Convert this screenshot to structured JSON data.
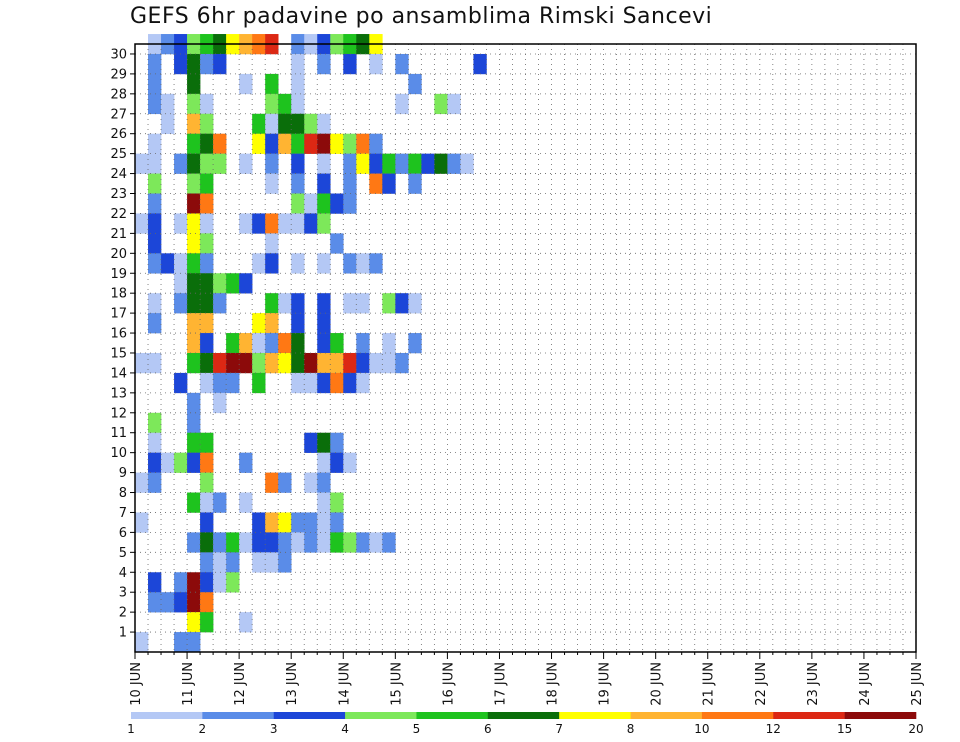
{
  "chart_data": {
    "type": "heatmap",
    "title": "GEFS 6hr padavine po ansamblima Rimski Sancevi",
    "x_tick_labels": [
      "10 JUN",
      "11 JUN",
      "12 JUN",
      "13 JUN",
      "14 JUN",
      "15 JUN",
      "16 JUN",
      "17 JUN",
      "18 JUN",
      "19 JUN",
      "20 JUN",
      "21 JUN",
      "22 JUN",
      "23 JUN",
      "24 JUN",
      "25 JUN"
    ],
    "y_tick_labels": [
      "1",
      "2",
      "3",
      "4",
      "5",
      "6",
      "7",
      "8",
      "9",
      "10",
      "11",
      "12",
      "13",
      "14",
      "15",
      "16",
      "17",
      "18",
      "19",
      "20",
      "21",
      "22",
      "23",
      "24",
      "25",
      "26",
      "27",
      "28",
      "29",
      "30"
    ],
    "x_steps_per_day": 4,
    "n_steps": 60,
    "grid": true,
    "colorbar": {
      "thresholds": [
        1,
        2,
        3,
        4,
        5,
        6,
        7,
        8,
        10,
        12,
        15,
        20
      ],
      "labels": [
        "1",
        "2",
        "3",
        "4",
        "5",
        "6",
        "7",
        "8",
        "10",
        "12",
        "15",
        "20"
      ],
      "colors": [
        "#b4c8f5",
        "#5a8ce8",
        "#1c46d8",
        "#7de85a",
        "#1ec31e",
        "#0a6e0a",
        "#ffff00",
        "#ffb432",
        "#ff7814",
        "#dc2814",
        "#8c0a0a"
      ]
    },
    "cells": [
      [
        1,
        30,
        1
      ],
      [
        2,
        30,
        2
      ],
      [
        3,
        30,
        3
      ],
      [
        4,
        30,
        4
      ],
      [
        5,
        30,
        5
      ],
      [
        6,
        30,
        6
      ],
      [
        7,
        30,
        7
      ],
      [
        8,
        30,
        8
      ],
      [
        9,
        30,
        9
      ],
      [
        10,
        30,
        10
      ],
      [
        12,
        30,
        2
      ],
      [
        13,
        30,
        1
      ],
      [
        14,
        30,
        3
      ],
      [
        15,
        30,
        4
      ],
      [
        16,
        30,
        5
      ],
      [
        17,
        30,
        6
      ],
      [
        18,
        30,
        7
      ],
      [
        1,
        29,
        2
      ],
      [
        3,
        29,
        3
      ],
      [
        4,
        29,
        6
      ],
      [
        5,
        29,
        2
      ],
      [
        6,
        29,
        3
      ],
      [
        12,
        29,
        1
      ],
      [
        14,
        29,
        2
      ],
      [
        16,
        29,
        3
      ],
      [
        18,
        29,
        1
      ],
      [
        20,
        29,
        2
      ],
      [
        26,
        29,
        3
      ],
      [
        1,
        28,
        2
      ],
      [
        4,
        28,
        6
      ],
      [
        8,
        28,
        1
      ],
      [
        10,
        28,
        5
      ],
      [
        12,
        28,
        1
      ],
      [
        21,
        28,
        2
      ],
      [
        1,
        27,
        2
      ],
      [
        2,
        27,
        1
      ],
      [
        4,
        27,
        4
      ],
      [
        5,
        27,
        1
      ],
      [
        10,
        27,
        4
      ],
      [
        11,
        27,
        5
      ],
      [
        12,
        27,
        1
      ],
      [
        20,
        27,
        1
      ],
      [
        23,
        27,
        4
      ],
      [
        24,
        27,
        1
      ],
      [
        2,
        26,
        1
      ],
      [
        4,
        26,
        8
      ],
      [
        5,
        26,
        4
      ],
      [
        9,
        26,
        5
      ],
      [
        10,
        26,
        1
      ],
      [
        11,
        26,
        6
      ],
      [
        12,
        26,
        6
      ],
      [
        13,
        26,
        4
      ],
      [
        14,
        26,
        1
      ],
      [
        1,
        25,
        1
      ],
      [
        4,
        25,
        5
      ],
      [
        5,
        25,
        6
      ],
      [
        6,
        25,
        9
      ],
      [
        9,
        25,
        7
      ],
      [
        10,
        25,
        3
      ],
      [
        11,
        25,
        8
      ],
      [
        12,
        25,
        5
      ],
      [
        13,
        25,
        10
      ],
      [
        14,
        25,
        11
      ],
      [
        15,
        25,
        7
      ],
      [
        16,
        25,
        4
      ],
      [
        17,
        25,
        9
      ],
      [
        18,
        25,
        2
      ],
      [
        0,
        24,
        1
      ],
      [
        1,
        24,
        1
      ],
      [
        3,
        24,
        2
      ],
      [
        4,
        24,
        6
      ],
      [
        5,
        24,
        4
      ],
      [
        6,
        24,
        4
      ],
      [
        8,
        24,
        1
      ],
      [
        10,
        24,
        2
      ],
      [
        12,
        24,
        3
      ],
      [
        14,
        24,
        1
      ],
      [
        16,
        24,
        2
      ],
      [
        17,
        24,
        7
      ],
      [
        18,
        24,
        3
      ],
      [
        19,
        24,
        5
      ],
      [
        20,
        24,
        2
      ],
      [
        21,
        24,
        5
      ],
      [
        22,
        24,
        3
      ],
      [
        23,
        24,
        6
      ],
      [
        24,
        24,
        2
      ],
      [
        25,
        24,
        1
      ],
      [
        1,
        23,
        4
      ],
      [
        4,
        23,
        4
      ],
      [
        5,
        23,
        5
      ],
      [
        10,
        23,
        1
      ],
      [
        12,
        23,
        2
      ],
      [
        14,
        23,
        3
      ],
      [
        16,
        23,
        2
      ],
      [
        18,
        23,
        9
      ],
      [
        19,
        23,
        3
      ],
      [
        21,
        23,
        2
      ],
      [
        1,
        22,
        2
      ],
      [
        4,
        22,
        11
      ],
      [
        5,
        22,
        9
      ],
      [
        12,
        22,
        4
      ],
      [
        13,
        22,
        1
      ],
      [
        14,
        22,
        5
      ],
      [
        15,
        22,
        3
      ],
      [
        16,
        22,
        2
      ],
      [
        0,
        21,
        1
      ],
      [
        1,
        21,
        3
      ],
      [
        3,
        21,
        1
      ],
      [
        4,
        21,
        7
      ],
      [
        5,
        21,
        1
      ],
      [
        8,
        21,
        1
      ],
      [
        9,
        21,
        3
      ],
      [
        10,
        21,
        9
      ],
      [
        11,
        21,
        1
      ],
      [
        12,
        21,
        1
      ],
      [
        13,
        21,
        3
      ],
      [
        14,
        21,
        4
      ],
      [
        1,
        20,
        3
      ],
      [
        4,
        20,
        7
      ],
      [
        5,
        20,
        4
      ],
      [
        10,
        20,
        1
      ],
      [
        15,
        20,
        2
      ],
      [
        1,
        19,
        2
      ],
      [
        2,
        19,
        3
      ],
      [
        3,
        19,
        1
      ],
      [
        4,
        19,
        5
      ],
      [
        5,
        19,
        2
      ],
      [
        9,
        19,
        1
      ],
      [
        10,
        19,
        3
      ],
      [
        12,
        19,
        1
      ],
      [
        14,
        19,
        1
      ],
      [
        16,
        19,
        2
      ],
      [
        17,
        19,
        1
      ],
      [
        18,
        19,
        2
      ],
      [
        3,
        18,
        1
      ],
      [
        4,
        18,
        6
      ],
      [
        5,
        18,
        6
      ],
      [
        6,
        18,
        4
      ],
      [
        7,
        18,
        5
      ],
      [
        8,
        18,
        3
      ],
      [
        1,
        17,
        1
      ],
      [
        3,
        17,
        2
      ],
      [
        4,
        17,
        6
      ],
      [
        5,
        17,
        6
      ],
      [
        6,
        17,
        2
      ],
      [
        10,
        17,
        5
      ],
      [
        11,
        17,
        1
      ],
      [
        12,
        17,
        3
      ],
      [
        14,
        17,
        3
      ],
      [
        16,
        17,
        1
      ],
      [
        17,
        17,
        1
      ],
      [
        19,
        17,
        4
      ],
      [
        20,
        17,
        3
      ],
      [
        21,
        17,
        1
      ],
      [
        1,
        16,
        2
      ],
      [
        4,
        16,
        8
      ],
      [
        5,
        16,
        8
      ],
      [
        9,
        16,
        7
      ],
      [
        10,
        16,
        8
      ],
      [
        12,
        16,
        3
      ],
      [
        14,
        16,
        3
      ],
      [
        4,
        15,
        8
      ],
      [
        5,
        15,
        3
      ],
      [
        7,
        15,
        5
      ],
      [
        8,
        15,
        8
      ],
      [
        9,
        15,
        1
      ],
      [
        10,
        15,
        2
      ],
      [
        11,
        15,
        9
      ],
      [
        12,
        15,
        6
      ],
      [
        14,
        15,
        3
      ],
      [
        15,
        15,
        5
      ],
      [
        17,
        15,
        2
      ],
      [
        19,
        15,
        1
      ],
      [
        21,
        15,
        2
      ],
      [
        0,
        14,
        1
      ],
      [
        1,
        14,
        1
      ],
      [
        4,
        14,
        5
      ],
      [
        5,
        14,
        6
      ],
      [
        6,
        14,
        10
      ],
      [
        7,
        14,
        11
      ],
      [
        8,
        14,
        11
      ],
      [
        9,
        14,
        4
      ],
      [
        10,
        14,
        8
      ],
      [
        11,
        14,
        7
      ],
      [
        12,
        14,
        6
      ],
      [
        13,
        14,
        11
      ],
      [
        14,
        14,
        8
      ],
      [
        15,
        14,
        8
      ],
      [
        16,
        14,
        10
      ],
      [
        17,
        14,
        3
      ],
      [
        18,
        14,
        1
      ],
      [
        19,
        14,
        1
      ],
      [
        20,
        14,
        2
      ],
      [
        3,
        13,
        3
      ],
      [
        5,
        13,
        1
      ],
      [
        6,
        13,
        2
      ],
      [
        7,
        13,
        2
      ],
      [
        9,
        13,
        5
      ],
      [
        12,
        13,
        1
      ],
      [
        13,
        13,
        1
      ],
      [
        14,
        13,
        3
      ],
      [
        15,
        13,
        9
      ],
      [
        16,
        13,
        3
      ],
      [
        17,
        13,
        1
      ],
      [
        4,
        12,
        2
      ],
      [
        6,
        12,
        1
      ],
      [
        1,
        11,
        4
      ],
      [
        4,
        11,
        2
      ],
      [
        1,
        10,
        1
      ],
      [
        4,
        10,
        5
      ],
      [
        5,
        10,
        5
      ],
      [
        13,
        10,
        3
      ],
      [
        14,
        10,
        6
      ],
      [
        15,
        10,
        2
      ],
      [
        1,
        9,
        3
      ],
      [
        2,
        9,
        1
      ],
      [
        3,
        9,
        4
      ],
      [
        4,
        9,
        3
      ],
      [
        5,
        9,
        9
      ],
      [
        8,
        9,
        2
      ],
      [
        14,
        9,
        1
      ],
      [
        15,
        9,
        3
      ],
      [
        16,
        9,
        1
      ],
      [
        0,
        8,
        1
      ],
      [
        1,
        8,
        2
      ],
      [
        5,
        8,
        4
      ],
      [
        10,
        8,
        9
      ],
      [
        11,
        8,
        2
      ],
      [
        13,
        8,
        1
      ],
      [
        14,
        8,
        2
      ],
      [
        4,
        7,
        5
      ],
      [
        5,
        7,
        1
      ],
      [
        6,
        7,
        2
      ],
      [
        8,
        7,
        1
      ],
      [
        14,
        7,
        1
      ],
      [
        15,
        7,
        4
      ],
      [
        0,
        6,
        1
      ],
      [
        5,
        6,
        3
      ],
      [
        9,
        6,
        3
      ],
      [
        10,
        6,
        8
      ],
      [
        11,
        6,
        7
      ],
      [
        12,
        6,
        2
      ],
      [
        13,
        6,
        2
      ],
      [
        14,
        6,
        1
      ],
      [
        15,
        6,
        2
      ],
      [
        4,
        5,
        2
      ],
      [
        5,
        5,
        6
      ],
      [
        6,
        5,
        2
      ],
      [
        7,
        5,
        5
      ],
      [
        8,
        5,
        1
      ],
      [
        9,
        5,
        3
      ],
      [
        10,
        5,
        3
      ],
      [
        11,
        5,
        2
      ],
      [
        12,
        5,
        1
      ],
      [
        13,
        5,
        2
      ],
      [
        14,
        5,
        1
      ],
      [
        15,
        5,
        5
      ],
      [
        16,
        5,
        4
      ],
      [
        17,
        5,
        2
      ],
      [
        18,
        5,
        1
      ],
      [
        19,
        5,
        2
      ],
      [
        5,
        4,
        2
      ],
      [
        6,
        4,
        1
      ],
      [
        7,
        4,
        2
      ],
      [
        9,
        4,
        1
      ],
      [
        10,
        4,
        1
      ],
      [
        11,
        4,
        2
      ],
      [
        1,
        3,
        3
      ],
      [
        3,
        3,
        2
      ],
      [
        4,
        3,
        12
      ],
      [
        5,
        3,
        3
      ],
      [
        6,
        3,
        1
      ],
      [
        7,
        3,
        4
      ],
      [
        1,
        2,
        2
      ],
      [
        2,
        2,
        2
      ],
      [
        3,
        2,
        3
      ],
      [
        4,
        2,
        12
      ],
      [
        5,
        2,
        9
      ],
      [
        4,
        1,
        7
      ],
      [
        5,
        1,
        5
      ],
      [
        8,
        1,
        1
      ],
      [
        3,
        0,
        2
      ],
      [
        4,
        0,
        2
      ],
      [
        0,
        0,
        1
      ]
    ]
  }
}
